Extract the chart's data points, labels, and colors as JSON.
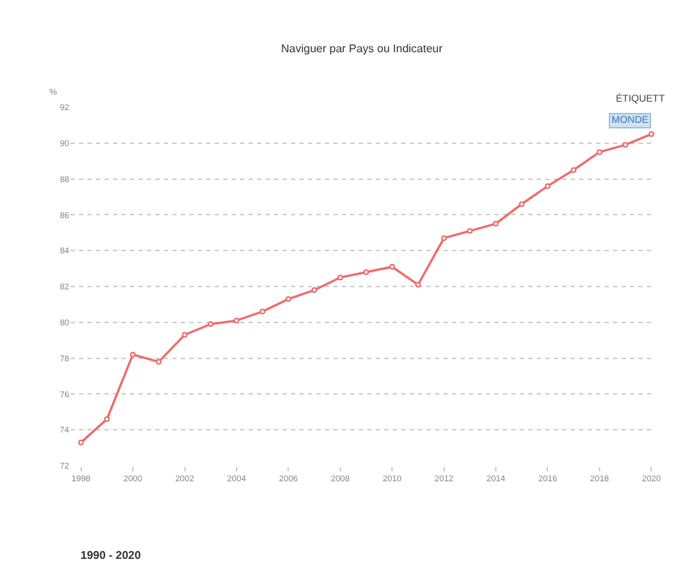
{
  "chart_data": {
    "type": "line",
    "title": "Naviguer par Pays ou Indicateur",
    "ylabel": "%",
    "x": [
      1998,
      1999,
      2000,
      2001,
      2002,
      2003,
      2004,
      2005,
      2006,
      2007,
      2008,
      2009,
      2010,
      2011,
      2012,
      2013,
      2014,
      2015,
      2016,
      2017,
      2018,
      2019,
      2020
    ],
    "series": [
      {
        "name": "MONDE",
        "color": "#ef6b6b",
        "values": [
          73.3,
          74.6,
          78.2,
          77.8,
          79.3,
          79.9,
          80.1,
          80.6,
          81.3,
          81.8,
          82.5,
          82.8,
          83.1,
          82.1,
          84.7,
          85.1,
          85.5,
          86.6,
          87.6,
          88.5,
          89.5,
          89.9,
          90.5
        ]
      }
    ],
    "xlim": [
      1997.6,
      2020.1
    ],
    "xticks": [
      1998,
      2000,
      2002,
      2004,
      2006,
      2008,
      2010,
      2012,
      2014,
      2016,
      2018,
      2020
    ],
    "ylim": [
      72,
      92
    ],
    "yticks": [
      72,
      74,
      76,
      78,
      80,
      82,
      84,
      86,
      88,
      90,
      92
    ],
    "grid": "y",
    "marker": "circle",
    "line_style": "solid",
    "annotations": [
      "ÉTIQUETT",
      "1990 - 2020"
    ]
  }
}
